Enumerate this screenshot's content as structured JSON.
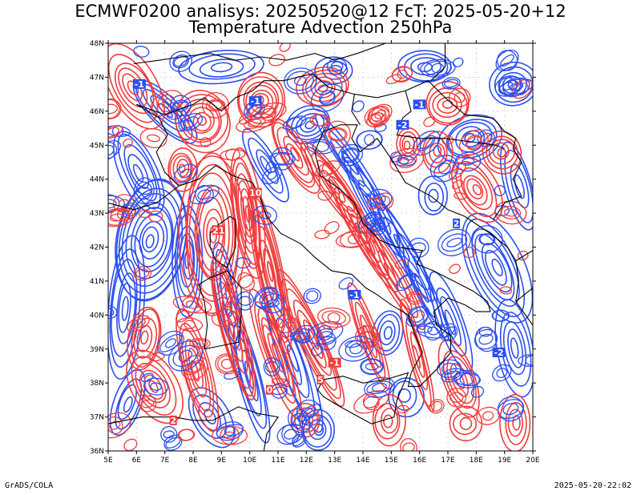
{
  "title_line1": "ECMWF0200 analisys: 20250520@12 FcT: 2025-05-20+12",
  "title_line2": "Temperature Advection 250hPa",
  "footer_left": "GrADS/COLA",
  "footer_right": "2025-05-20-22:02",
  "map": {
    "lon_range": [
      5,
      20
    ],
    "lat_range": [
      36,
      48
    ],
    "lon_ticks": [
      "5E",
      "6E",
      "7E",
      "8E",
      "9E",
      "10E",
      "11E",
      "12E",
      "13E",
      "14E",
      "15E",
      "16E",
      "17E",
      "18E",
      "19E",
      "20E"
    ],
    "lat_ticks": [
      "36N",
      "37N",
      "38N",
      "39N",
      "40N",
      "41N",
      "42N",
      "43N",
      "44N",
      "45N",
      "46N",
      "47N",
      "48N"
    ],
    "colors": {
      "positive": "#f03c3c",
      "negative": "#2b4ff0",
      "coast": "#000000",
      "grid": "#888888"
    },
    "contour_labels": [
      {
        "text": "10",
        "lon": 10.2,
        "lat": 43.6,
        "color": "positive"
      },
      {
        "text": "21",
        "lon": 8.9,
        "lat": 42.5,
        "color": "positive"
      },
      {
        "text": "-1",
        "lon": 10.2,
        "lat": 46.3,
        "color": "negative"
      },
      {
        "text": "-1",
        "lon": 16.0,
        "lat": 46.2,
        "color": "negative"
      },
      {
        "text": "-2",
        "lon": 15.4,
        "lat": 45.6,
        "color": "negative"
      },
      {
        "text": "-1",
        "lon": 13.7,
        "lat": 40.6,
        "color": "negative"
      },
      {
        "text": "-2",
        "lon": 18.8,
        "lat": 38.9,
        "color": "negative"
      },
      {
        "text": "-1",
        "lon": 13.0,
        "lat": 38.6,
        "color": "positive"
      },
      {
        "text": "5",
        "lon": 12.5,
        "lat": 38.1,
        "color": "positive"
      },
      {
        "text": "0",
        "lon": 10.7,
        "lat": 37.8,
        "color": "positive"
      },
      {
        "text": "2",
        "lon": 7.3,
        "lat": 36.9,
        "color": "positive"
      },
      {
        "text": "-1",
        "lon": 6.1,
        "lat": 46.8,
        "color": "negative"
      },
      {
        "text": "2",
        "lon": 17.3,
        "lat": 42.7,
        "color": "negative"
      }
    ]
  }
}
